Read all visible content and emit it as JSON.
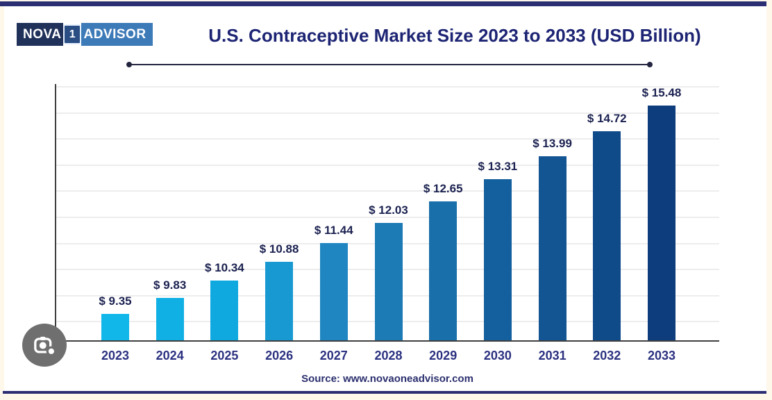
{
  "branding": {
    "logo_nova": "NOVA",
    "logo_one": "1",
    "logo_advisor": "ADVISOR"
  },
  "header": {
    "title": "U.S. Contraceptive Market Size 2023 to 2033 (USD Billion)"
  },
  "footer": {
    "source": "Source: www.novaoneadvisor.com"
  },
  "lens": {
    "icon": "camera-lens-icon"
  },
  "colors": {
    "accent_navy": "#1d2473",
    "page_cream": "#fdf8ea",
    "card_white": "#ffffff",
    "frame_line": "#2c2e74",
    "axis": "#3f3f3f",
    "gridline": "#ededed",
    "value_label": "#1b2150",
    "year_label": "#2b3180",
    "source_text": "#2b2f6e",
    "lens_background": "#6f6f6f",
    "logo_left_bg": "#20325a",
    "logo_right_bg": "#3d7ab8"
  },
  "chart_data": {
    "type": "bar",
    "title": "U.S. Contraceptive Market Size 2023 to 2033 (USD Billion)",
    "xlabel": "",
    "ylabel": "",
    "categories": [
      "2023",
      "2024",
      "2025",
      "2026",
      "2027",
      "2028",
      "2029",
      "2030",
      "2031",
      "2032",
      "2033"
    ],
    "values": [
      9.35,
      9.83,
      10.34,
      10.88,
      11.44,
      12.03,
      12.65,
      13.31,
      13.99,
      14.72,
      15.48
    ],
    "value_labels": [
      "$ 9.35",
      "$ 9.83",
      "$ 10.34",
      "$ 10.88",
      "$ 11.44",
      "$ 12.03",
      "$ 12.65",
      "$ 13.31",
      "$ 13.99",
      "$ 14.72",
      "$ 15.48"
    ],
    "bar_colors": [
      "#12b7ea",
      "#10b0e5",
      "#0fa9df",
      "#1899d2",
      "#1f86c2",
      "#1c7ab5",
      "#186fa9",
      "#145f9d",
      "#125592",
      "#0f4a89",
      "#0d3d7c"
    ],
    "ylim": [
      8.55,
      16.05
    ],
    "y_axis_ticks": "none",
    "grid": "horizontal",
    "legend": "none",
    "units": "USD Billion"
  }
}
